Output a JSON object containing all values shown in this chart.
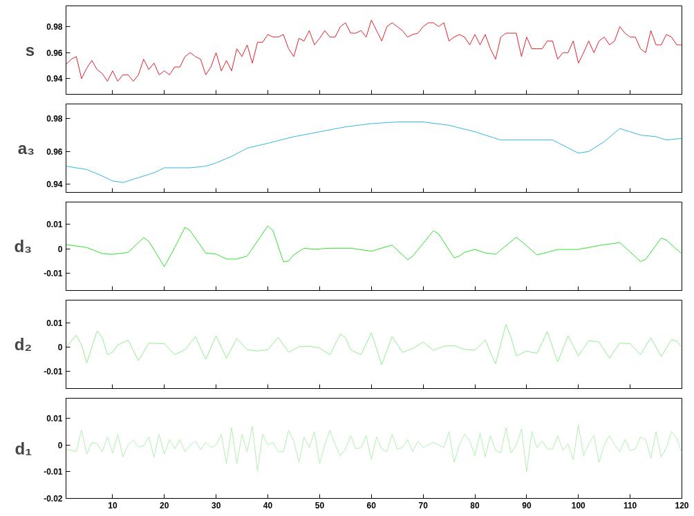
{
  "chart_data": [
    {
      "type": "line",
      "ylabel": "s",
      "color": "#e0202a",
      "xlim": [
        1,
        120
      ],
      "xticks": [
        10,
        20,
        30,
        40,
        50,
        60,
        70,
        80,
        90,
        100,
        110,
        120
      ],
      "ylim": [
        0.928,
        0.996
      ],
      "yticks": [
        0.94,
        0.96,
        0.98
      ],
      "tick_labels": "y",
      "grid": false,
      "x": [
        1,
        2,
        3,
        4,
        5,
        6,
        7,
        8,
        9,
        10,
        11,
        12,
        13,
        14,
        15,
        16,
        17,
        18,
        19,
        20,
        21,
        22,
        23,
        24,
        25,
        26,
        27,
        28,
        29,
        30,
        31,
        32,
        33,
        34,
        35,
        36,
        37,
        38,
        39,
        40,
        41,
        42,
        43,
        44,
        45,
        46,
        47,
        48,
        49,
        50,
        51,
        52,
        53,
        54,
        55,
        56,
        57,
        58,
        59,
        60,
        61,
        62,
        63,
        64,
        65,
        66,
        67,
        68,
        69,
        70,
        71,
        72,
        73,
        74,
        75,
        76,
        77,
        78,
        79,
        80,
        81,
        82,
        83,
        84,
        85,
        86,
        87,
        88,
        89,
        90,
        91,
        92,
        93,
        94,
        95,
        96,
        97,
        98,
        99,
        100,
        101,
        102,
        103,
        104,
        105,
        106,
        107,
        108,
        109,
        110,
        111,
        112,
        113,
        114,
        115,
        116,
        117,
        118,
        119,
        120
      ],
      "values": [
        0.951,
        0.955,
        0.957,
        0.94,
        0.948,
        0.954,
        0.947,
        0.944,
        0.938,
        0.946,
        0.938,
        0.943,
        0.943,
        0.938,
        0.943,
        0.955,
        0.947,
        0.952,
        0.943,
        0.946,
        0.943,
        0.949,
        0.949,
        0.957,
        0.96,
        0.957,
        0.955,
        0.943,
        0.949,
        0.96,
        0.946,
        0.954,
        0.946,
        0.963,
        0.957,
        0.966,
        0.952,
        0.968,
        0.968,
        0.974,
        0.972,
        0.972,
        0.974,
        0.963,
        0.957,
        0.971,
        0.969,
        0.977,
        0.966,
        0.971,
        0.977,
        0.972,
        0.972,
        0.98,
        0.983,
        0.975,
        0.975,
        0.977,
        0.972,
        0.985,
        0.977,
        0.969,
        0.98,
        0.983,
        0.98,
        0.977,
        0.972,
        0.974,
        0.975,
        0.98,
        0.983,
        0.983,
        0.98,
        0.983,
        0.969,
        0.972,
        0.974,
        0.972,
        0.966,
        0.974,
        0.966,
        0.974,
        0.963,
        0.955,
        0.972,
        0.975,
        0.975,
        0.975,
        0.957,
        0.972,
        0.963,
        0.963,
        0.963,
        0.969,
        0.969,
        0.955,
        0.96,
        0.96,
        0.969,
        0.952,
        0.96,
        0.969,
        0.96,
        0.969,
        0.972,
        0.966,
        0.969,
        0.98,
        0.975,
        0.972,
        0.972,
        0.963,
        0.96,
        0.977,
        0.966,
        0.966,
        0.974,
        0.972,
        0.966,
        0.966
      ]
    },
    {
      "type": "line",
      "ylabel": "a₃",
      "color": "#30b8e0",
      "xlim": [
        1,
        120
      ],
      "xticks": [
        10,
        20,
        30,
        40,
        50,
        60,
        70,
        80,
        90,
        100,
        110,
        120
      ],
      "ylim": [
        0.935,
        0.989
      ],
      "yticks": [
        0.94,
        0.96,
        0.98
      ],
      "tick_labels": "y",
      "grid": false,
      "x": [
        1,
        5,
        8,
        10,
        12,
        15,
        18,
        20,
        23,
        25,
        28,
        30,
        33,
        36,
        40,
        45,
        50,
        55,
        60,
        65,
        70,
        75,
        80,
        85,
        90,
        95,
        100,
        102,
        105,
        108,
        110,
        112,
        115,
        117,
        120
      ],
      "values": [
        0.951,
        0.949,
        0.945,
        0.942,
        0.941,
        0.944,
        0.947,
        0.95,
        0.95,
        0.95,
        0.951,
        0.953,
        0.957,
        0.962,
        0.965,
        0.969,
        0.972,
        0.975,
        0.977,
        0.978,
        0.978,
        0.976,
        0.972,
        0.967,
        0.967,
        0.967,
        0.959,
        0.96,
        0.966,
        0.974,
        0.972,
        0.97,
        0.969,
        0.967,
        0.968
      ]
    },
    {
      "type": "line",
      "ylabel": "d₃",
      "color": "#30e030",
      "xlim": [
        1,
        120
      ],
      "xticks": [
        10,
        20,
        30,
        40,
        50,
        60,
        70,
        80,
        90,
        100,
        110,
        120
      ],
      "ylim": [
        -0.017,
        0.019
      ],
      "yticks": [
        -0.01,
        0,
        0.01
      ],
      "tick_labels": "y",
      "grid": false,
      "x": [
        1,
        5,
        8,
        10,
        13,
        16,
        17,
        20,
        22,
        24,
        25,
        28,
        30,
        32,
        34,
        36,
        40,
        41,
        43,
        44,
        45,
        47,
        49,
        52,
        56,
        60,
        64,
        67,
        68,
        72,
        73,
        76,
        77,
        78,
        80,
        82,
        84,
        88,
        89,
        92,
        94,
        96,
        100,
        104,
        108,
        112,
        113,
        116,
        117,
        119,
        120
      ],
      "values": [
        0.0017,
        0.0005,
        -0.002,
        -0.0023,
        -0.0015,
        0.0045,
        0.003,
        -0.0073,
        0.0005,
        0.0087,
        0.0073,
        -0.0018,
        -0.0022,
        -0.0042,
        -0.0042,
        -0.003,
        0.0093,
        0.0073,
        -0.0053,
        -0.005,
        -0.0025,
        0.0002,
        -0.0002,
        0.0002,
        0.0002,
        -0.001,
        0.0015,
        -0.0045,
        -0.003,
        0.0073,
        0.006,
        -0.0037,
        -0.003,
        -0.0015,
        -0.0003,
        -0.0017,
        -0.0023,
        0.0047,
        0.003,
        -0.0025,
        -0.0015,
        -0.0003,
        -0.0003,
        0.0013,
        0.0025,
        -0.0052,
        -0.0043,
        0.0043,
        0.0035,
        -0.0003,
        -0.002
      ]
    },
    {
      "type": "line",
      "ylabel": "d₂",
      "color": "#90ee90",
      "xlim": [
        1,
        120
      ],
      "xticks": [
        10,
        20,
        30,
        40,
        50,
        60,
        70,
        80,
        90,
        100,
        110,
        120
      ],
      "ylim": [
        -0.017,
        0.0195
      ],
      "yticks": [
        -0.01,
        0,
        0.01
      ],
      "tick_labels": "y",
      "grid": false,
      "x": [
        1,
        3,
        4,
        5,
        7,
        8,
        9,
        10,
        11,
        13,
        15,
        17,
        20,
        22,
        24,
        26,
        28,
        30,
        32,
        34,
        36,
        38,
        40,
        42,
        44,
        46,
        48,
        50,
        52,
        54,
        55,
        56,
        58,
        60,
        62,
        64,
        66,
        68,
        70,
        72,
        74,
        76,
        78,
        80,
        82,
        84,
        86,
        87,
        88,
        90,
        92,
        94,
        96,
        98,
        100,
        102,
        104,
        106,
        108,
        110,
        112,
        114,
        116,
        118,
        119,
        120
      ],
      "values": [
        0.0,
        0.005,
        0.001,
        -0.0065,
        0.0068,
        0.004,
        -0.003,
        -0.002,
        0.001,
        0.003,
        -0.0055,
        0.0018,
        0.0015,
        -0.003,
        -0.001,
        0.0045,
        -0.005,
        0.0048,
        -0.0045,
        0.0037,
        -0.001,
        -0.0015,
        -0.001,
        0.0042,
        -0.002,
        0.0003,
        0.0005,
        -0.0003,
        -0.003,
        0.0055,
        0.004,
        -0.001,
        -0.003,
        0.006,
        -0.0072,
        0.0045,
        -0.002,
        -0.0005,
        0.0022,
        -0.0012,
        0.0005,
        0.0007,
        -0.0008,
        -0.0012,
        0.003,
        -0.0068,
        0.0095,
        0.004,
        -0.0035,
        -0.0015,
        -0.0025,
        0.0065,
        -0.006,
        0.0048,
        -0.0035,
        0.0028,
        0.0022,
        -0.0045,
        0.0018,
        0.0015,
        -0.003,
        0.004,
        -0.0038,
        0.0032,
        0.0025,
        0.0
      ]
    },
    {
      "type": "line",
      "ylabel": "d₁",
      "color": "#b0f0b0",
      "xlim": [
        1,
        120
      ],
      "xticks": [
        10,
        20,
        30,
        40,
        50,
        60,
        70,
        80,
        90,
        100,
        110,
        120
      ],
      "ylim": [
        -0.02,
        0.0175
      ],
      "yticks": [
        -0.02,
        -0.01,
        0,
        0.01
      ],
      "grid": false,
      "x": [
        1,
        3,
        4,
        5,
        6,
        7,
        8,
        9,
        10,
        11,
        12,
        13,
        14,
        15,
        16,
        17,
        18,
        19,
        20,
        21,
        22,
        23,
        24,
        25,
        26,
        27,
        28,
        29,
        30,
        31,
        32,
        33,
        34,
        35,
        36,
        37,
        38,
        39,
        40,
        41,
        42,
        43,
        44,
        45,
        46,
        47,
        48,
        49,
        50,
        51,
        52,
        53,
        54,
        55,
        56,
        57,
        58,
        59,
        60,
        61,
        62,
        63,
        64,
        65,
        66,
        67,
        68,
        69,
        70,
        71,
        72,
        73,
        74,
        75,
        76,
        77,
        78,
        79,
        80,
        81,
        82,
        83,
        84,
        85,
        86,
        87,
        88,
        89,
        90,
        91,
        92,
        93,
        94,
        95,
        96,
        97,
        98,
        99,
        100,
        101,
        102,
        103,
        104,
        105,
        106,
        107,
        108,
        109,
        110,
        111,
        112,
        113,
        114,
        115,
        116,
        117,
        118,
        119,
        120
      ],
      "values": [
        -0.0015,
        -0.0025,
        0.0055,
        -0.0035,
        0.001,
        0.0005,
        -0.0025,
        0.003,
        -0.003,
        0.004,
        -0.0045,
        0.0,
        0.002,
        -0.0008,
        -0.0003,
        0.003,
        -0.0045,
        0.004,
        -0.0035,
        0.002,
        -0.0015,
        0.002,
        -0.0025,
        0.0,
        0.0015,
        -0.0018,
        0.001,
        -0.001,
        0.0,
        0.004,
        -0.007,
        0.0065,
        -0.007,
        0.004,
        -0.0025,
        0.007,
        -0.0098,
        0.004,
        0.0,
        0.001,
        -0.0025,
        -0.0025,
        0.0055,
        0.0015,
        -0.0065,
        0.003,
        -0.001,
        0.005,
        -0.007,
        0.0,
        0.0055,
        0.0,
        -0.004,
        -0.0015,
        0.0035,
        -0.0015,
        -0.001,
        0.0035,
        -0.0055,
        0.003,
        -0.0015,
        -0.0025,
        0.004,
        -0.0015,
        -0.001,
        0.002,
        -0.0025,
        0.0015,
        -0.001,
        0.0,
        0.001,
        0.0,
        -0.001,
        0.005,
        -0.0065,
        0.0,
        0.004,
        0.0015,
        -0.004,
        0.0045,
        -0.0045,
        0.0035,
        -0.002,
        -0.003,
        0.0065,
        -0.003,
        0.0,
        0.006,
        -0.01,
        0.005,
        -0.001,
        0.0015,
        -0.0015,
        -0.0015,
        0.0035,
        -0.002,
        0.0005,
        -0.0055,
        0.0075,
        -0.004,
        0.0005,
        0.0035,
        -0.0065,
        0.0,
        0.0035,
        0.0,
        -0.0025,
        0.002,
        -0.002,
        -0.0015,
        0.003,
        0.002,
        -0.005,
        0.005,
        -0.0045,
        -0.001,
        0.005,
        0.0025,
        -0.003
      ]
    }
  ]
}
